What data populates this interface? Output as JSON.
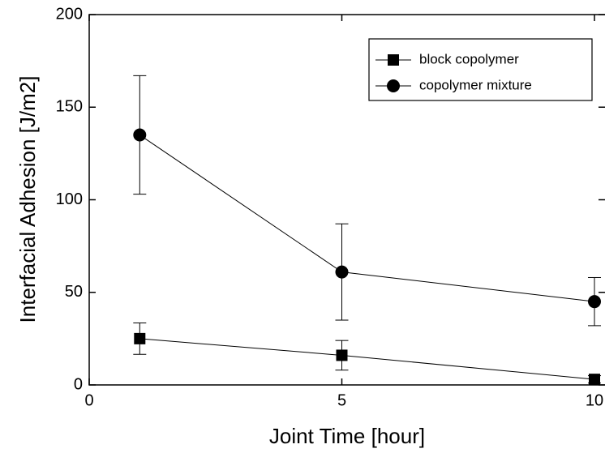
{
  "chart_data": {
    "type": "line",
    "x_label": "Joint Time [hour]",
    "y_label": "Interfacial Adhesion [J/m2]",
    "xlim": [
      0,
      10
    ],
    "xticks": [
      0,
      5,
      10
    ],
    "ylim": [
      0,
      200
    ],
    "yticks": [
      0,
      50,
      100,
      150,
      200
    ],
    "x": [
      1,
      5,
      10
    ],
    "series": [
      {
        "name": "block copolymer",
        "color": "#000000",
        "marker": "square",
        "values": [
          25,
          16,
          3
        ],
        "errors": [
          8.5,
          8,
          2
        ]
      },
      {
        "name": "copolymer mixture",
        "color": "#000000",
        "marker": "circle",
        "values": [
          135,
          61,
          45
        ],
        "errors": [
          32,
          26,
          13
        ]
      }
    ],
    "legend": "upper right"
  }
}
